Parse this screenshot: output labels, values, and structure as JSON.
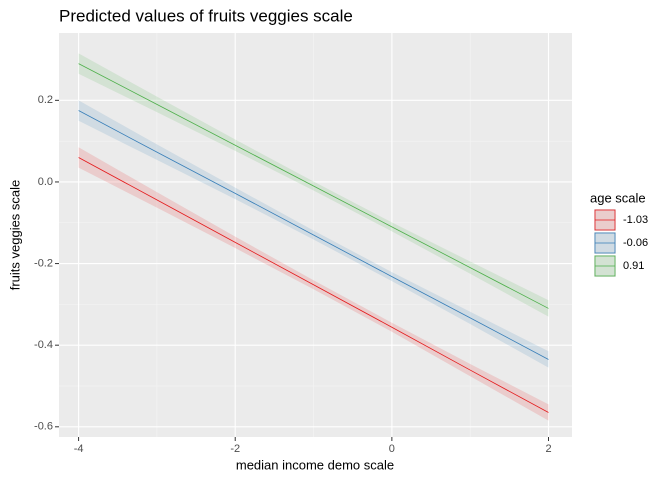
{
  "chart_data": {
    "type": "line",
    "title": "Predicted values of fruits veggies scale",
    "x_label": "median income demo scale",
    "y_label": "fruits veggies scale",
    "legend_title": "age scale",
    "legend_position": "right",
    "grid": true,
    "x": [
      -4,
      -3,
      -2,
      -1,
      0,
      1,
      2
    ],
    "xlim": [
      -4.25,
      2.3
    ],
    "ylim": [
      -0.625,
      0.365
    ],
    "xticks": [
      -4,
      -2,
      0,
      2
    ],
    "x_minor_breaks": [
      -3,
      -1,
      1
    ],
    "yticks": [
      0.2,
      {
        "value": 0,
        "label": "0.0"
      },
      -0.2,
      -0.4,
      -0.6
    ],
    "y_minor_breaks": [
      0.1,
      -0.1,
      -0.3,
      -0.5
    ],
    "series": [
      {
        "name": "-1.03",
        "color": "#e41a1c",
        "values": [
          0.06,
          -0.044,
          -0.148,
          -0.252,
          -0.356,
          -0.461,
          -0.565
        ],
        "lower": [
          0.035,
          -0.063,
          -0.162,
          -0.263,
          -0.367,
          -0.476,
          -0.585
        ],
        "upper": [
          0.085,
          -0.025,
          -0.134,
          -0.241,
          -0.345,
          -0.446,
          -0.545
        ]
      },
      {
        "name": "-0.06",
        "color": "#377eb8",
        "values": [
          0.175,
          0.073,
          -0.028,
          -0.13,
          -0.232,
          -0.333,
          -0.435
        ],
        "lower": [
          0.15,
          0.054,
          -0.042,
          -0.141,
          -0.243,
          -0.348,
          -0.455
        ],
        "upper": [
          0.2,
          0.092,
          -0.014,
          -0.119,
          -0.221,
          -0.318,
          -0.415
        ]
      },
      {
        "name": "0.91",
        "color": "#4daf4a",
        "values": [
          0.29,
          0.19,
          0.09,
          -0.01,
          -0.11,
          -0.21,
          -0.31
        ],
        "lower": [
          0.265,
          0.171,
          0.076,
          -0.021,
          -0.121,
          -0.225,
          -0.33
        ],
        "upper": [
          0.315,
          0.209,
          0.104,
          0.001,
          -0.099,
          -0.195,
          -0.29
        ]
      }
    ]
  }
}
